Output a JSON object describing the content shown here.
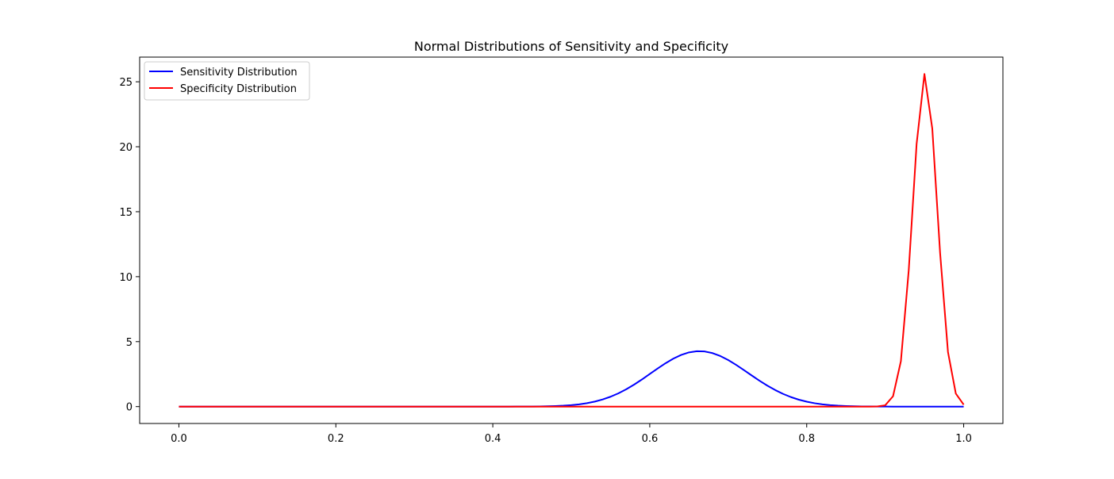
{
  "chart_data": {
    "type": "line",
    "title": "Normal Distributions of Sensitivity and Specificity",
    "xlabel": "",
    "ylabel": "",
    "xlim": [
      -0.05,
      1.05
    ],
    "ylim": [
      -1.3,
      26.9
    ],
    "x_ticks": [
      0.0,
      0.2,
      0.4,
      0.6,
      0.8,
      1.0
    ],
    "x_tick_labels": [
      "0.0",
      "0.2",
      "0.4",
      "0.6",
      "0.8",
      "1.0"
    ],
    "y_ticks": [
      0,
      5,
      10,
      15,
      20,
      25
    ],
    "y_tick_labels": [
      "0",
      "5",
      "10",
      "15",
      "20",
      "25"
    ],
    "grid": false,
    "legend_position": "upper-left",
    "series": [
      {
        "name": "Sensitivity Distribution",
        "color": "#0000ff",
        "x": [
          0.0,
          0.01,
          0.02,
          0.03,
          0.04,
          0.05,
          0.06,
          0.07,
          0.08,
          0.09,
          0.1,
          0.11,
          0.12,
          0.13,
          0.14,
          0.15,
          0.16,
          0.17,
          0.18,
          0.19,
          0.2,
          0.21,
          0.22,
          0.23,
          0.24,
          0.25,
          0.26,
          0.27,
          0.28,
          0.29,
          0.3,
          0.31,
          0.32,
          0.33,
          0.34,
          0.35,
          0.36,
          0.37,
          0.38,
          0.39,
          0.4,
          0.41,
          0.42,
          0.43,
          0.44,
          0.45,
          0.46,
          0.47,
          0.48,
          0.49,
          0.5,
          0.51,
          0.52,
          0.53,
          0.54,
          0.55,
          0.56,
          0.57,
          0.58,
          0.59,
          0.6,
          0.61,
          0.62,
          0.63,
          0.64,
          0.65,
          0.66,
          0.67,
          0.68,
          0.69,
          0.7,
          0.71,
          0.72,
          0.73,
          0.74,
          0.75,
          0.76,
          0.77,
          0.78,
          0.79,
          0.8,
          0.81,
          0.82,
          0.83,
          0.84,
          0.85,
          0.86,
          0.87,
          0.88,
          0.89,
          0.9,
          0.91,
          0.92,
          0.93,
          0.94,
          0.95,
          0.96,
          0.97,
          0.98,
          0.99,
          1.0
        ],
        "y": [
          0,
          0,
          0,
          0,
          0,
          0,
          0,
          0,
          0,
          0,
          0,
          0,
          0,
          0,
          0,
          0,
          0,
          0,
          0,
          0,
          0,
          0,
          0,
          0,
          0,
          0,
          0,
          0,
          0,
          0,
          0,
          0,
          0,
          0,
          0,
          0,
          0,
          0,
          0,
          0,
          0,
          0.001,
          0.001,
          0.002,
          0.004,
          0.008,
          0.014,
          0.025,
          0.042,
          0.07,
          0.112,
          0.174,
          0.263,
          0.386,
          0.55,
          0.76,
          1.02,
          1.331,
          1.69,
          2.087,
          2.508,
          2.931,
          3.333,
          3.69,
          3.976,
          4.172,
          4.263,
          4.244,
          4.116,
          3.889,
          3.581,
          3.212,
          2.808,
          2.392,
          1.986,
          1.607,
          1.268,
          0.974,
          0.73,
          0.532,
          0.377,
          0.261,
          0.175,
          0.115,
          0.073,
          0.045,
          0.027,
          0.016,
          0.009,
          0.005,
          0.003,
          0.001,
          0.001,
          0,
          0,
          0,
          0,
          0,
          0,
          0,
          0
        ]
      },
      {
        "name": "Specificity Distribution",
        "color": "#ff0000",
        "x": [
          0.0,
          0.01,
          0.02,
          0.03,
          0.04,
          0.05,
          0.06,
          0.07,
          0.08,
          0.09,
          0.1,
          0.11,
          0.12,
          0.13,
          0.14,
          0.15,
          0.16,
          0.17,
          0.18,
          0.19,
          0.2,
          0.21,
          0.22,
          0.23,
          0.24,
          0.25,
          0.26,
          0.27,
          0.28,
          0.29,
          0.3,
          0.31,
          0.32,
          0.33,
          0.34,
          0.35,
          0.36,
          0.37,
          0.38,
          0.39,
          0.4,
          0.41,
          0.42,
          0.43,
          0.44,
          0.45,
          0.46,
          0.47,
          0.48,
          0.49,
          0.5,
          0.51,
          0.52,
          0.53,
          0.54,
          0.55,
          0.56,
          0.57,
          0.58,
          0.59,
          0.6,
          0.61,
          0.62,
          0.63,
          0.64,
          0.65,
          0.66,
          0.67,
          0.68,
          0.69,
          0.7,
          0.71,
          0.72,
          0.73,
          0.74,
          0.75,
          0.76,
          0.77,
          0.78,
          0.79,
          0.8,
          0.81,
          0.82,
          0.83,
          0.84,
          0.85,
          0.86,
          0.87,
          0.88,
          0.89,
          0.9,
          0.91,
          0.92,
          0.93,
          0.94,
          0.95,
          0.96,
          0.97,
          0.98,
          0.99,
          1.0
        ],
        "y": [
          0,
          0,
          0,
          0,
          0,
          0,
          0,
          0,
          0,
          0,
          0,
          0,
          0,
          0,
          0,
          0,
          0,
          0,
          0,
          0,
          0,
          0,
          0,
          0,
          0,
          0,
          0,
          0,
          0,
          0,
          0,
          0,
          0,
          0,
          0,
          0,
          0,
          0,
          0,
          0,
          0,
          0,
          0,
          0,
          0,
          0,
          0,
          0,
          0,
          0,
          0,
          0,
          0,
          0,
          0,
          0,
          0,
          0,
          0,
          0,
          0,
          0,
          0,
          0,
          0,
          0,
          0,
          0,
          0,
          0,
          0,
          0,
          0,
          0,
          0,
          0,
          0,
          0,
          0,
          0,
          0,
          0,
          0,
          0,
          0,
          0,
          0,
          0,
          0,
          0.01,
          0.1,
          0.8,
          3.5,
          10.5,
          20.2,
          25.6,
          21.4,
          11.8,
          4.2,
          1.0,
          0.15
        ]
      }
    ]
  }
}
